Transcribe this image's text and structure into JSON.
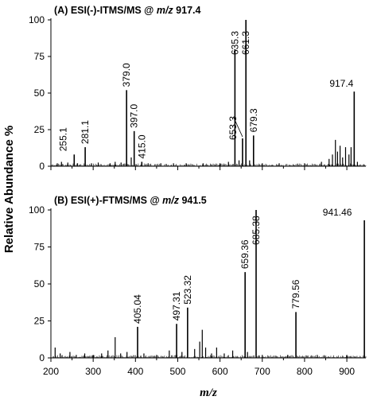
{
  "y_axis_title": "Relative Abundance %",
  "x_axis_title": "m/z",
  "colors": {
    "line": "#000000",
    "background": "#ffffff"
  },
  "chart_data": [
    {
      "type": "bar",
      "panel": "A",
      "title_prefix": "(A) ESI(-)-ITMS/MS @ ",
      "title_italic": "m/z",
      "title_suffix": " 917.4",
      "ylim": [
        0,
        100
      ],
      "xlim": [
        200,
        945
      ],
      "yticks": [
        0,
        25,
        50,
        75,
        100
      ],
      "xticks": [],
      "grid": false,
      "labeled_peaks": [
        {
          "mz": 255.1,
          "y": 8,
          "label": "255.1"
        },
        {
          "mz": 281.1,
          "y": 13,
          "label": "281.1"
        },
        {
          "mz": 379.0,
          "y": 52,
          "label": "379.0"
        },
        {
          "mz": 397.0,
          "y": 24,
          "label": "397.0"
        },
        {
          "mz": 415.0,
          "y": 3,
          "label": "415.0"
        },
        {
          "mz": 635.3,
          "y": 80,
          "label": "635.3"
        },
        {
          "mz": 653.3,
          "y": 19,
          "label": "653.3"
        },
        {
          "mz": 661.3,
          "y": 100,
          "label": "661.3"
        },
        {
          "mz": 679.3,
          "y": 21,
          "label": "679.3"
        },
        {
          "mz": 917.4,
          "y": 51,
          "label": "917.4"
        }
      ],
      "minor_peaks": [
        {
          "mz": 215,
          "y": 2
        },
        {
          "mz": 225,
          "y": 3
        },
        {
          "mz": 240,
          "y": 2.5
        },
        {
          "mz": 263,
          "y": 2
        },
        {
          "mz": 296,
          "y": 2
        },
        {
          "mz": 312,
          "y": 2.5
        },
        {
          "mz": 340,
          "y": 2
        },
        {
          "mz": 352,
          "y": 3
        },
        {
          "mz": 366,
          "y": 2.5
        },
        {
          "mz": 390,
          "y": 6
        },
        {
          "mz": 430,
          "y": 2
        },
        {
          "mz": 460,
          "y": 2
        },
        {
          "mz": 490,
          "y": 2
        },
        {
          "mz": 520,
          "y": 2
        },
        {
          "mz": 560,
          "y": 2
        },
        {
          "mz": 600,
          "y": 2
        },
        {
          "mz": 620,
          "y": 3
        },
        {
          "mz": 645,
          "y": 4
        },
        {
          "mz": 670,
          "y": 4
        },
        {
          "mz": 700,
          "y": 2
        },
        {
          "mz": 740,
          "y": 2
        },
        {
          "mz": 800,
          "y": 2
        },
        {
          "mz": 840,
          "y": 3
        },
        {
          "mz": 858,
          "y": 5
        },
        {
          "mz": 866,
          "y": 8
        },
        {
          "mz": 873,
          "y": 18
        },
        {
          "mz": 878,
          "y": 10
        },
        {
          "mz": 884,
          "y": 14
        },
        {
          "mz": 890,
          "y": 6
        },
        {
          "mz": 897,
          "y": 13
        },
        {
          "mz": 905,
          "y": 8
        },
        {
          "mz": 910,
          "y": 13
        },
        {
          "mz": 925,
          "y": 3
        }
      ]
    },
    {
      "type": "bar",
      "panel": "B",
      "title_prefix": "(B) ESI(+)-FTMS/MS @ ",
      "title_italic": "m/z",
      "title_suffix": " 941.5",
      "ylim": [
        0,
        100
      ],
      "xlim": [
        200,
        945
      ],
      "yticks": [
        0,
        25,
        50,
        75,
        100
      ],
      "xticks": [
        200,
        300,
        400,
        500,
        600,
        700,
        800,
        900
      ],
      "grid": false,
      "labeled_peaks": [
        {
          "mz": 405.04,
          "y": 21,
          "label": "405.04"
        },
        {
          "mz": 497.31,
          "y": 23,
          "label": "497.31"
        },
        {
          "mz": 523.32,
          "y": 34,
          "label": "523.32"
        },
        {
          "mz": 659.36,
          "y": 58,
          "label": "659.36"
        },
        {
          "mz": 685.38,
          "y": 100,
          "label": "685.38"
        },
        {
          "mz": 779.56,
          "y": 31,
          "label": "779.56"
        },
        {
          "mz": 941.46,
          "y": 93,
          "label": "941.46"
        }
      ],
      "minor_peaks": [
        {
          "mz": 210,
          "y": 7
        },
        {
          "mz": 222,
          "y": 3
        },
        {
          "mz": 245,
          "y": 4
        },
        {
          "mz": 260,
          "y": 2
        },
        {
          "mz": 280,
          "y": 3
        },
        {
          "mz": 300,
          "y": 2
        },
        {
          "mz": 320,
          "y": 3
        },
        {
          "mz": 335,
          "y": 5
        },
        {
          "mz": 352,
          "y": 14
        },
        {
          "mz": 365,
          "y": 3
        },
        {
          "mz": 380,
          "y": 4
        },
        {
          "mz": 420,
          "y": 3
        },
        {
          "mz": 450,
          "y": 2
        },
        {
          "mz": 480,
          "y": 5
        },
        {
          "mz": 510,
          "y": 4
        },
        {
          "mz": 540,
          "y": 6
        },
        {
          "mz": 552,
          "y": 11
        },
        {
          "mz": 558,
          "y": 19
        },
        {
          "mz": 566,
          "y": 7
        },
        {
          "mz": 580,
          "y": 3
        },
        {
          "mz": 592,
          "y": 7
        },
        {
          "mz": 610,
          "y": 3
        },
        {
          "mz": 630,
          "y": 5
        },
        {
          "mz": 665,
          "y": 4
        },
        {
          "mz": 700,
          "y": 2
        },
        {
          "mz": 760,
          "y": 2
        },
        {
          "mz": 830,
          "y": 2
        },
        {
          "mz": 900,
          "y": 2
        }
      ]
    }
  ]
}
